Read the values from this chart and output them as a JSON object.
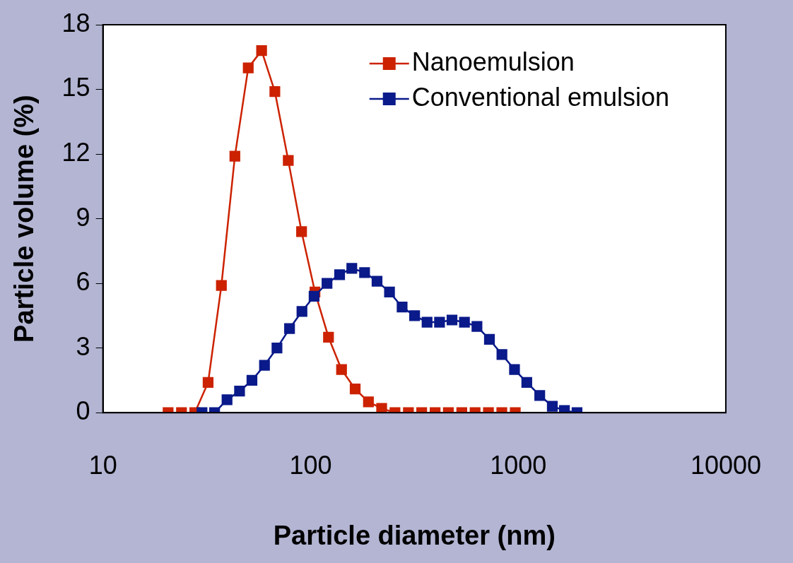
{
  "chart_data": {
    "type": "line",
    "xlabel": "Particle diameter (nm)",
    "ylabel": "Particle volume (%)",
    "log": "x",
    "xlim": [
      10,
      10000
    ],
    "xticks": [
      10,
      100,
      1000,
      10000
    ],
    "ylim": [
      0,
      18
    ],
    "yticks": [
      0,
      3,
      6,
      9,
      12,
      15,
      18
    ],
    "grid": false,
    "legend": "top right",
    "marker": "square",
    "line_style": "solid",
    "series": [
      {
        "name": "Nanoemulsion",
        "color": "#cc2200",
        "x": [
          20.6,
          23.9,
          27.7,
          32.1,
          37.2,
          43.2,
          50.1,
          58.1,
          67.3,
          78.1,
          90.5,
          105,
          122,
          141,
          164,
          190,
          220,
          255,
          296,
          343,
          398,
          461,
          535,
          620,
          719,
          834,
          968
        ],
        "values": [
          0,
          0,
          0,
          1.4,
          5.9,
          11.9,
          16.0,
          16.8,
          14.9,
          11.7,
          8.4,
          5.6,
          3.5,
          2.0,
          1.1,
          0.5,
          0.2,
          0,
          0,
          0,
          0,
          0,
          0,
          0,
          0,
          0,
          0
        ]
      },
      {
        "name": "Conventional emulsion",
        "color": "#0a1a8a",
        "x": [
          30,
          34.5,
          39.6,
          45.5,
          52.2,
          60,
          68.9,
          79.2,
          90.9,
          104,
          120,
          138,
          158,
          182,
          209,
          240,
          276,
          317,
          364,
          418,
          480,
          551,
          633,
          727,
          835,
          960,
          1100,
          1270,
          1460,
          1670,
          1920
        ],
        "values": [
          0,
          0,
          0.6,
          1.0,
          1.5,
          2.2,
          3.0,
          3.9,
          4.7,
          5.4,
          6.0,
          6.4,
          6.7,
          6.5,
          6.1,
          5.6,
          4.9,
          4.5,
          4.2,
          4.2,
          4.3,
          4.2,
          4.0,
          3.4,
          2.7,
          2.0,
          1.4,
          0.8,
          0.3,
          0.1,
          0
        ]
      }
    ]
  }
}
